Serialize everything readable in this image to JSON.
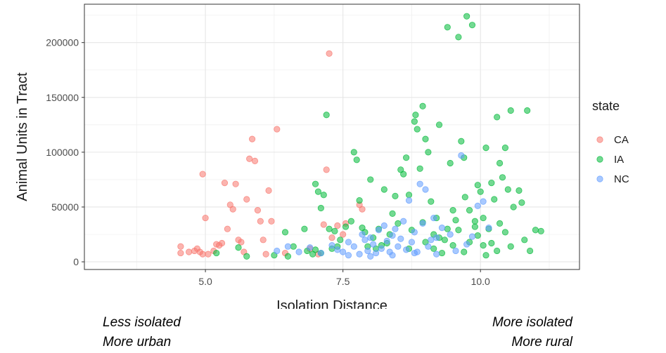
{
  "chart_data": {
    "type": "scatter",
    "xlabel": "Isolation Distance",
    "ylabel": "Animal Units in Tract",
    "xlim": [
      2.8,
      11.8
    ],
    "ylim": [
      -7000,
      235000
    ],
    "x_ticks": [
      5.0,
      7.5,
      10.0
    ],
    "x_tick_labels": [
      "5.0",
      "7.5",
      "10.0"
    ],
    "y_ticks": [
      0,
      50000,
      100000,
      150000,
      200000
    ],
    "y_tick_labels": [
      "0",
      "50000",
      "100000",
      "150000",
      "200000"
    ],
    "grid": true,
    "legend_title": "state",
    "legend_position": "right",
    "series": [
      {
        "name": "CA",
        "color": "#f8766d",
        "points": [
          [
            4.55,
            14000
          ],
          [
            4.55,
            8000
          ],
          [
            4.7,
            9000
          ],
          [
            4.8,
            10000
          ],
          [
            4.85,
            12000
          ],
          [
            4.9,
            9000
          ],
          [
            4.95,
            7000
          ],
          [
            5.0,
            40000
          ],
          [
            4.95,
            80000
          ],
          [
            5.05,
            7000
          ],
          [
            5.15,
            10000
          ],
          [
            5.2,
            16000
          ],
          [
            5.25,
            15000
          ],
          [
            5.3,
            17000
          ],
          [
            5.35,
            72000
          ],
          [
            5.4,
            30000
          ],
          [
            5.45,
            52000
          ],
          [
            5.5,
            48000
          ],
          [
            5.55,
            71000
          ],
          [
            5.6,
            20000
          ],
          [
            5.65,
            18000
          ],
          [
            5.7,
            9000
          ],
          [
            5.75,
            57000
          ],
          [
            5.8,
            94000
          ],
          [
            5.85,
            112000
          ],
          [
            5.9,
            92000
          ],
          [
            5.95,
            47000
          ],
          [
            6.0,
            37000
          ],
          [
            6.05,
            20000
          ],
          [
            6.1,
            7000
          ],
          [
            6.15,
            65000
          ],
          [
            6.2,
            37000
          ],
          [
            6.3,
            121000
          ],
          [
            6.45,
            8000
          ],
          [
            7.15,
            34000
          ],
          [
            7.2,
            84000
          ],
          [
            7.25,
            190000
          ],
          [
            7.3,
            22000
          ],
          [
            7.4,
            33000
          ],
          [
            7.5,
            25000
          ],
          [
            7.55,
            35000
          ],
          [
            7.8,
            52000
          ],
          [
            7.85,
            48000
          ],
          [
            6.9,
            12000
          ],
          [
            7.05,
            7000
          ]
        ]
      },
      {
        "name": "IA",
        "color": "#00ba38",
        "points": [
          [
            5.2,
            8000
          ],
          [
            5.6,
            13000
          ],
          [
            5.75,
            5000
          ],
          [
            6.25,
            6000
          ],
          [
            6.45,
            27000
          ],
          [
            6.5,
            5000
          ],
          [
            6.6,
            14000
          ],
          [
            6.8,
            30000
          ],
          [
            6.85,
            10000
          ],
          [
            6.95,
            7000
          ],
          [
            7.0,
            71000
          ],
          [
            7.05,
            64000
          ],
          [
            7.1,
            49000
          ],
          [
            7.15,
            61000
          ],
          [
            7.2,
            134000
          ],
          [
            7.25,
            30000
          ],
          [
            7.3,
            12000
          ],
          [
            7.35,
            28000
          ],
          [
            7.45,
            20000
          ],
          [
            7.55,
            32000
          ],
          [
            7.65,
            37000
          ],
          [
            7.7,
            100000
          ],
          [
            7.75,
            93000
          ],
          [
            7.8,
            56000
          ],
          [
            7.85,
            31000
          ],
          [
            7.9,
            27000
          ],
          [
            7.95,
            14000
          ],
          [
            8.0,
            75000
          ],
          [
            8.05,
            22000
          ],
          [
            8.1,
            12000
          ],
          [
            8.15,
            30000
          ],
          [
            8.25,
            66000
          ],
          [
            8.3,
            17000
          ],
          [
            8.35,
            25000
          ],
          [
            8.4,
            44000
          ],
          [
            8.45,
            60000
          ],
          [
            8.5,
            35000
          ],
          [
            8.55,
            84000
          ],
          [
            8.6,
            80000
          ],
          [
            8.65,
            95000
          ],
          [
            8.7,
            61000
          ],
          [
            8.75,
            29000
          ],
          [
            8.8,
            128000
          ],
          [
            8.82,
            134000
          ],
          [
            8.85,
            121000
          ],
          [
            8.9,
            85000
          ],
          [
            8.95,
            142000
          ],
          [
            9.0,
            112000
          ],
          [
            9.05,
            100000
          ],
          [
            9.1,
            55000
          ],
          [
            9.15,
            25000
          ],
          [
            9.2,
            40000
          ],
          [
            9.25,
            125000
          ],
          [
            9.3,
            8000
          ],
          [
            9.35,
            20000
          ],
          [
            9.4,
            214000
          ],
          [
            9.45,
            90000
          ],
          [
            9.5,
            47000
          ],
          [
            9.55,
            38000
          ],
          [
            9.6,
            205000
          ],
          [
            9.65,
            110000
          ],
          [
            9.7,
            95000
          ],
          [
            9.72,
            59000
          ],
          [
            9.75,
            224000
          ],
          [
            9.8,
            47000
          ],
          [
            9.85,
            216000
          ],
          [
            9.9,
            32000
          ],
          [
            9.95,
            70000
          ],
          [
            10.0,
            64000
          ],
          [
            10.05,
            40000
          ],
          [
            10.1,
            104000
          ],
          [
            10.15,
            30000
          ],
          [
            10.2,
            72000
          ],
          [
            10.25,
            57000
          ],
          [
            10.3,
            132000
          ],
          [
            10.35,
            90000
          ],
          [
            10.4,
            77000
          ],
          [
            10.45,
            104000
          ],
          [
            10.5,
            66000
          ],
          [
            10.55,
            138000
          ],
          [
            10.6,
            50000
          ],
          [
            10.7,
            65000
          ],
          [
            10.75,
            54000
          ],
          [
            10.8,
            20000
          ],
          [
            10.85,
            138000
          ],
          [
            10.9,
            10000
          ],
          [
            11.0,
            29000
          ],
          [
            11.1,
            28000
          ],
          [
            8.2,
            15000
          ],
          [
            8.7,
            12000
          ],
          [
            9.0,
            18000
          ],
          [
            9.25,
            22000
          ],
          [
            9.5,
            15000
          ],
          [
            9.8,
            18000
          ],
          [
            10.05,
            15000
          ],
          [
            10.3,
            10000
          ],
          [
            10.45,
            27000
          ],
          [
            9.6,
            29000
          ],
          [
            9.9,
            37000
          ],
          [
            9.95,
            24000
          ],
          [
            10.1,
            6000
          ],
          [
            10.35,
            35000
          ],
          [
            10.55,
            14000
          ],
          [
            8.95,
            36000
          ],
          [
            9.15,
            12000
          ],
          [
            9.4,
            30000
          ],
          [
            9.7,
            9000
          ],
          [
            10.2,
            17000
          ],
          [
            7.1,
            8000
          ],
          [
            7.4,
            14000
          ],
          [
            7.0,
            11000
          ]
        ]
      },
      {
        "name": "NC",
        "color": "#619cff",
        "points": [
          [
            6.3,
            10000
          ],
          [
            6.5,
            14000
          ],
          [
            6.7,
            9000
          ],
          [
            6.9,
            13000
          ],
          [
            7.1,
            8000
          ],
          [
            7.3,
            15000
          ],
          [
            7.4,
            11000
          ],
          [
            7.5,
            9000
          ],
          [
            7.6,
            18000
          ],
          [
            7.7,
            14000
          ],
          [
            7.8,
            7000
          ],
          [
            7.85,
            25000
          ],
          [
            7.9,
            20000
          ],
          [
            7.95,
            10000
          ],
          [
            8.0,
            22000
          ],
          [
            8.05,
            16000
          ],
          [
            8.1,
            8000
          ],
          [
            8.15,
            29000
          ],
          [
            8.2,
            12000
          ],
          [
            8.25,
            33000
          ],
          [
            8.3,
            19000
          ],
          [
            8.35,
            9000
          ],
          [
            8.4,
            24000
          ],
          [
            8.45,
            30000
          ],
          [
            8.5,
            14000
          ],
          [
            8.55,
            21000
          ],
          [
            8.6,
            37000
          ],
          [
            8.65,
            11000
          ],
          [
            8.7,
            56000
          ],
          [
            8.75,
            18000
          ],
          [
            8.8,
            27000
          ],
          [
            8.85,
            9000
          ],
          [
            8.9,
            71000
          ],
          [
            8.95,
            35000
          ],
          [
            9.0,
            66000
          ],
          [
            9.05,
            14000
          ],
          [
            9.1,
            20000
          ],
          [
            9.15,
            40000
          ],
          [
            9.2,
            22000
          ],
          [
            9.3,
            31000
          ],
          [
            9.45,
            25000
          ],
          [
            9.55,
            10000
          ],
          [
            9.65,
            97000
          ],
          [
            9.75,
            16000
          ],
          [
            9.85,
            23000
          ],
          [
            9.95,
            51000
          ],
          [
            10.05,
            55000
          ],
          [
            10.15,
            31000
          ],
          [
            8.0,
            5000
          ],
          [
            8.4,
            6000
          ],
          [
            8.8,
            8000
          ],
          [
            9.2,
            7000
          ],
          [
            7.6,
            6000
          ]
        ]
      }
    ]
  },
  "annotations": {
    "left_line1": "Less isolated",
    "left_line2": "More urban",
    "right_line1": "More isolated",
    "right_line2": "More rural"
  }
}
